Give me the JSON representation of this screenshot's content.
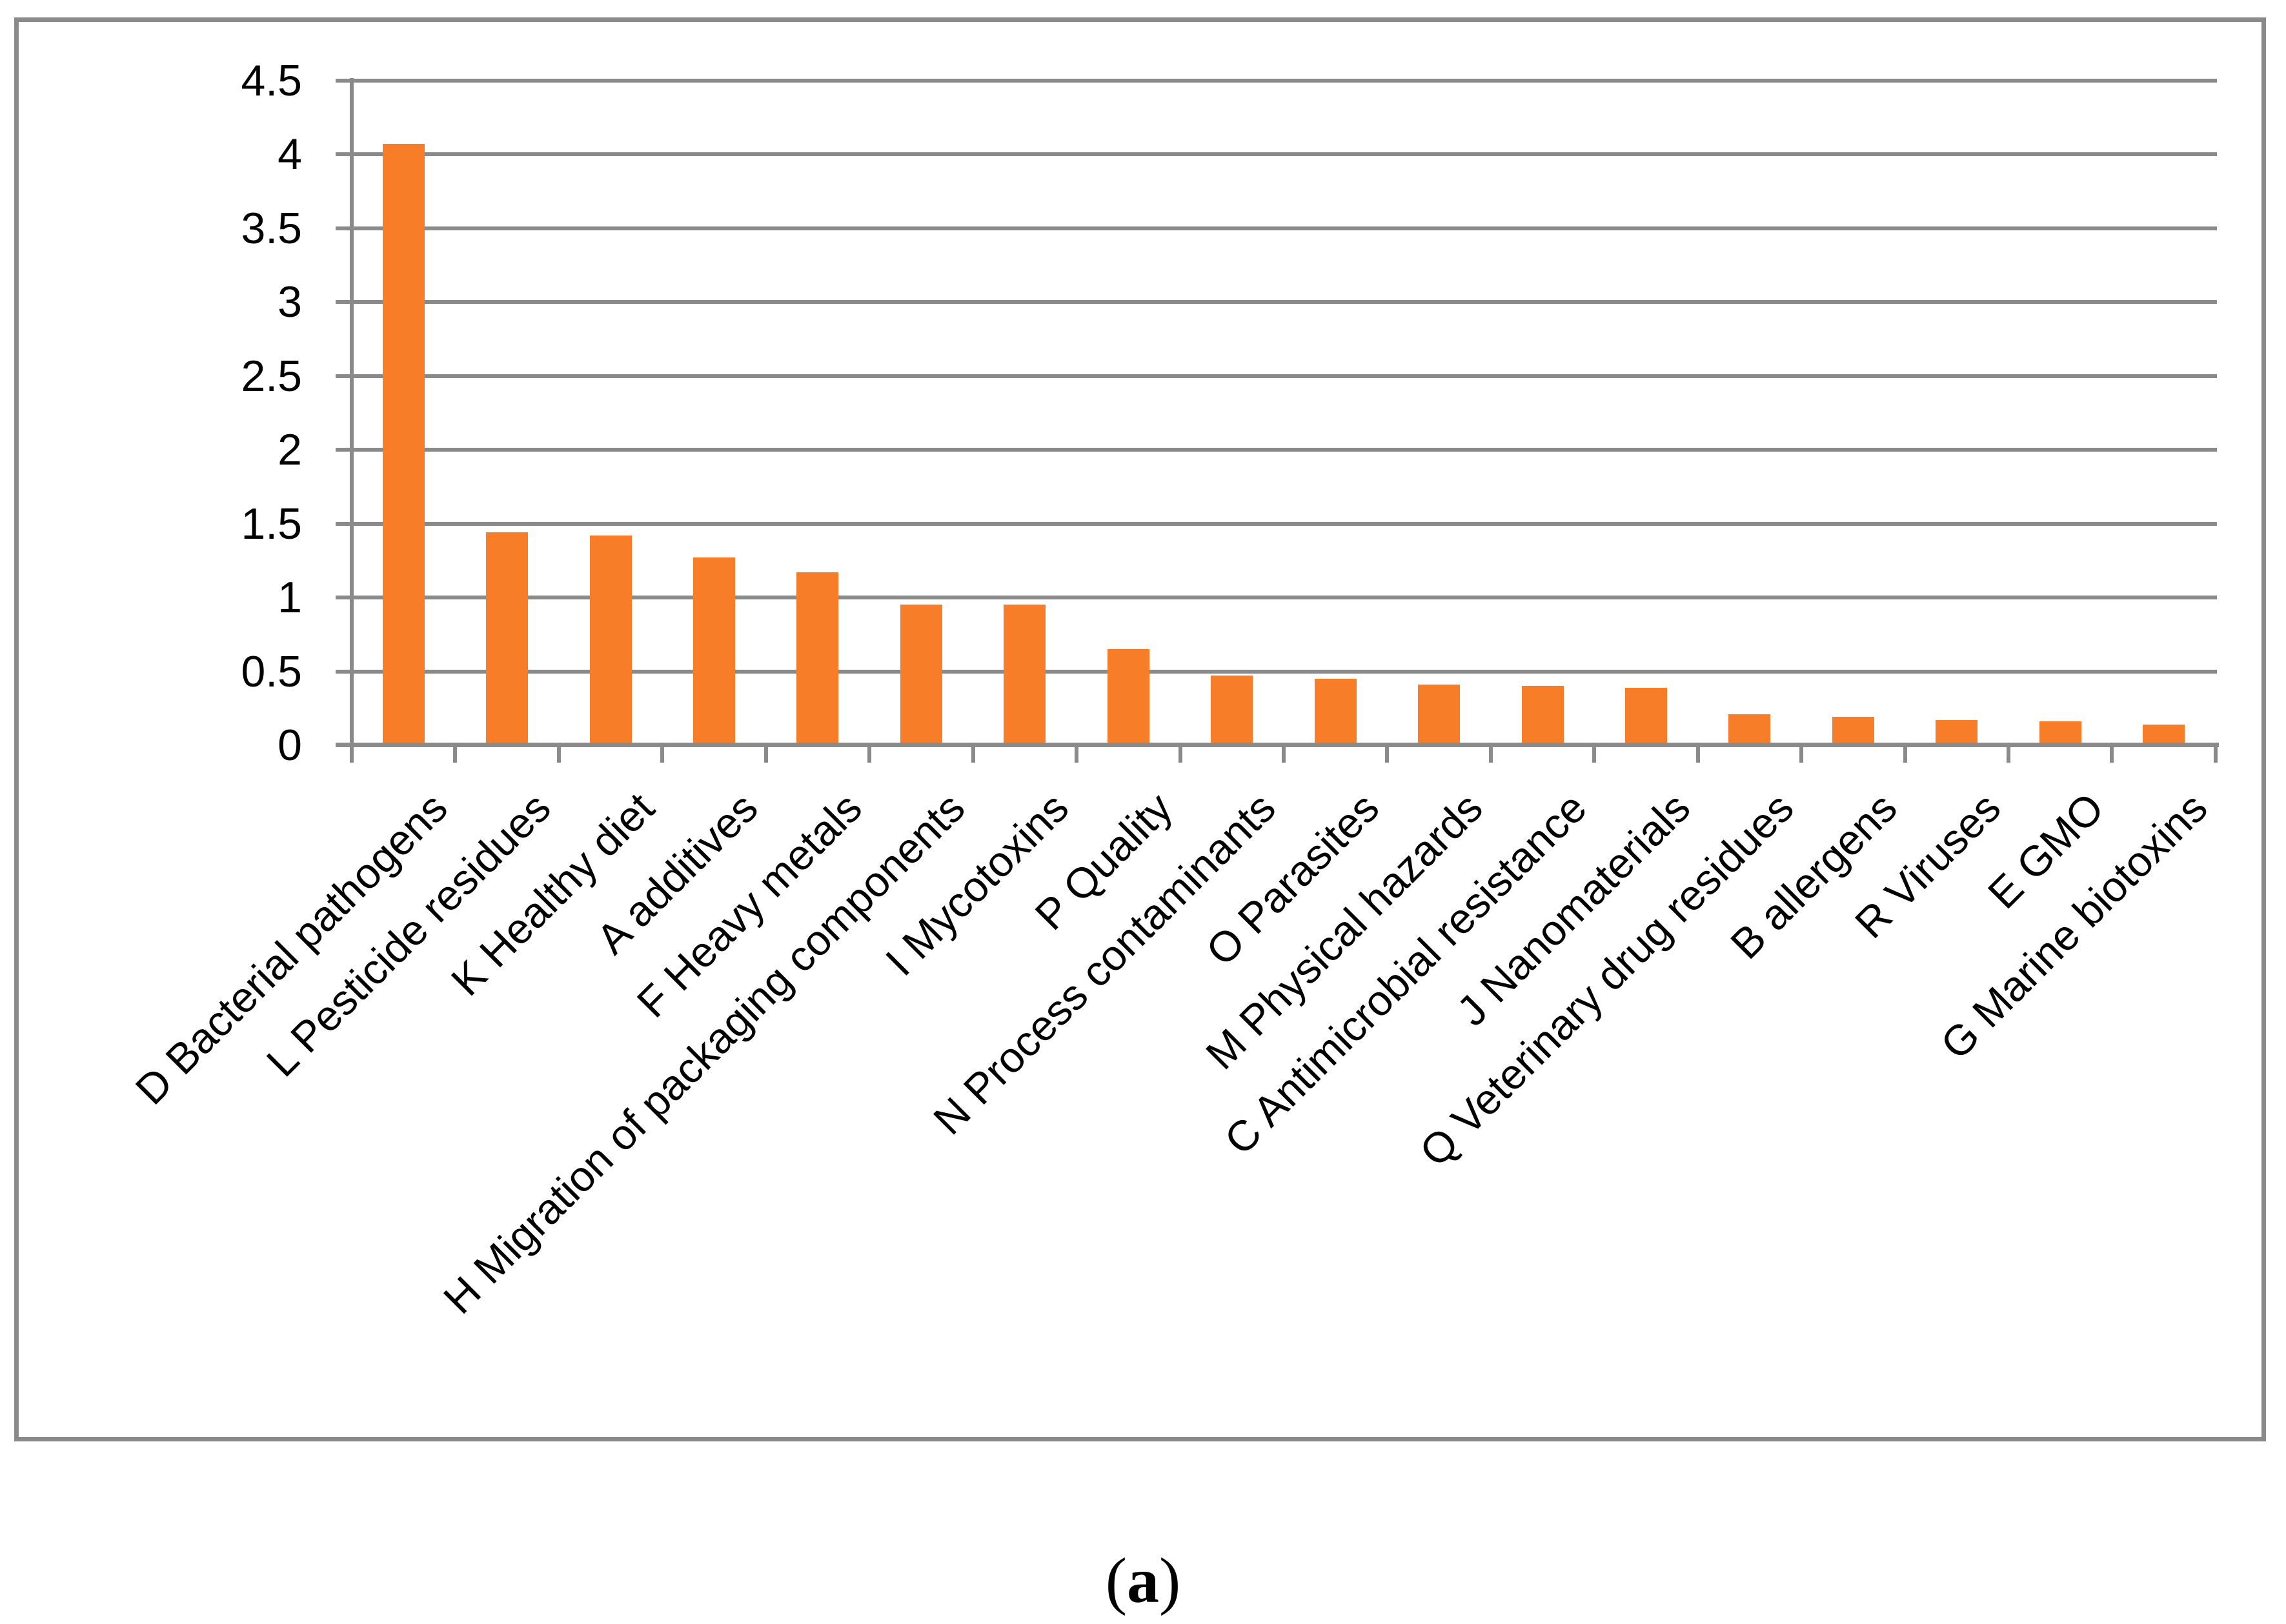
{
  "page": {
    "background": "#FFFFFF"
  },
  "caption": {
    "prefix": "(",
    "letter": "a",
    "suffix": ")"
  },
  "chart_data": {
    "type": "bar",
    "title": "",
    "xlabel": "",
    "ylabel": "",
    "categories": [
      "D Bacterial pathogens",
      "L Pesticide residues",
      "K Healthy diet",
      "A additives",
      "F Heavy metals",
      "H Migration of packaging components",
      "I Mycotoxins",
      "P Quality",
      "N Process contaminants",
      "O Parasites",
      "M Physical hazards",
      "C Antimicrobial resistance",
      "J Nanomaterials",
      "Q Veterinary drug residues",
      "B allergens",
      "R Viruses",
      "E GMO",
      "G Marine biotoxins"
    ],
    "values": [
      4.07,
      1.44,
      1.42,
      1.27,
      1.17,
      0.95,
      0.95,
      0.65,
      0.47,
      0.45,
      0.41,
      0.4,
      0.39,
      0.21,
      0.19,
      0.17,
      0.16,
      0.14
    ],
    "ylim": [
      0,
      4.5
    ],
    "ytick_step": 0.5,
    "ytick_labels": [
      "0",
      "0.5",
      "1",
      "1.5",
      "2",
      "2.5",
      "3",
      "3.5",
      "4",
      "4.5"
    ],
    "grid": "horizontal",
    "legend_position": "none",
    "bar_color": "#F87D29",
    "gridline_color": "#8A8A8A",
    "axis_color": "#8A8A8A",
    "border_color": "#8A8A8A",
    "text_color": "#000000"
  }
}
